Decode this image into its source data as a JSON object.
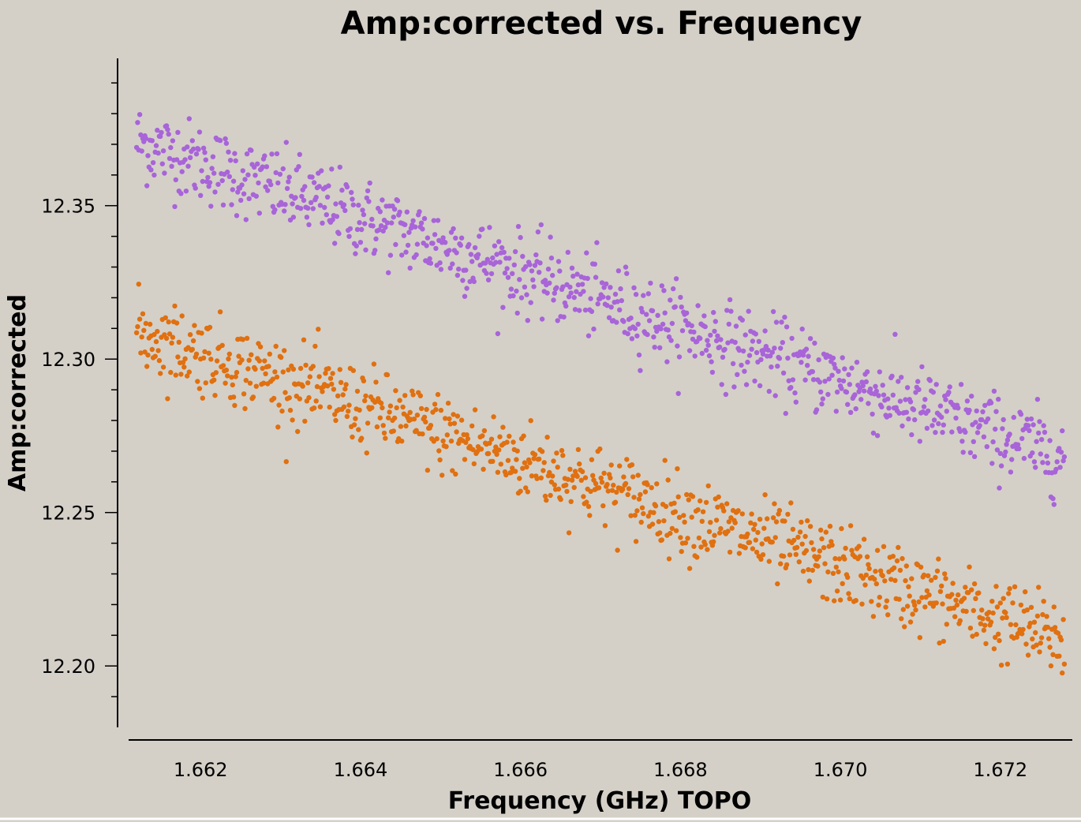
{
  "chart_data": {
    "type": "scatter",
    "title": "Amp:corrected vs. Frequency",
    "xlabel": "Frequency (GHz) TOPO",
    "ylabel": "Amp:corrected",
    "xlim": [
      1.6611,
      1.6729
    ],
    "ylim": [
      12.18,
      12.398
    ],
    "x_ticks": [
      "1.662",
      "1.664",
      "1.666",
      "1.668",
      "1.670",
      "1.672"
    ],
    "y_ticks": [
      "12.20",
      "12.25",
      "12.30",
      "12.35"
    ],
    "grid": false,
    "legend": "none",
    "series": [
      {
        "color": "#a864d8",
        "n_points": 900,
        "x_range": [
          1.6612,
          1.6728
        ],
        "trend_start": 12.371,
        "trend_end": 12.268,
        "scatter": 0.0065
      },
      {
        "color": "#e07010",
        "n_points": 900,
        "x_range": [
          1.6612,
          1.6728
        ],
        "trend_start": 12.309,
        "trend_end": 12.208,
        "scatter": 0.0065
      }
    ]
  }
}
